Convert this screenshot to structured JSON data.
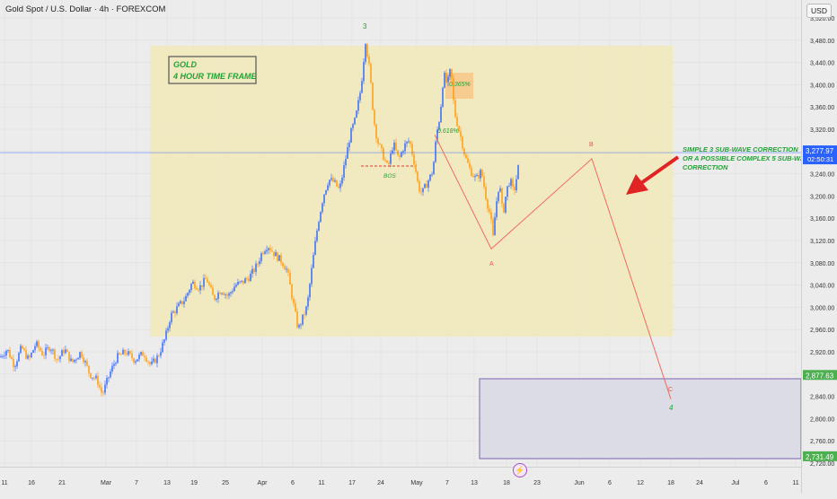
{
  "header": {
    "title": "Gold Spot / U.S. Dollar · 4h · FOREXCOM",
    "currency_button": "USD"
  },
  "chart_data": {
    "type": "candlestick",
    "title": "Gold Spot / U.S. Dollar · 4h · FOREXCOM",
    "ylim": [
      2705,
      3540
    ],
    "y_ticks": [
      2720,
      2760,
      2800,
      2840,
      2880,
      2920,
      2960,
      3000,
      3040,
      3080,
      3120,
      3160,
      3200,
      3240,
      3280,
      3320,
      3360,
      3400,
      3440,
      3480,
      3520
    ],
    "y_tick_labels": [
      "2,720.00",
      "2,760.00",
      "2,800.00",
      "2,840.00",
      "2,880.00",
      "2,920.00",
      "2,960.00",
      "3,000.00",
      "3,040.00",
      "3,080.00",
      "3,120.00",
      "3,160.00",
      "3,200.00",
      "3,240.00",
      "3,280.00",
      "3,320.00",
      "3,360.00",
      "3,400.00",
      "3,440.00",
      "3,480.00",
      "3,520.00"
    ],
    "x_ticks": [
      "11",
      "16",
      "21",
      "Mar",
      "7",
      "13",
      "19",
      "25",
      "Apr",
      "6",
      "11",
      "17",
      "24",
      "May",
      "7",
      "13",
      "18",
      "23",
      "Jun",
      "6",
      "12",
      "18",
      "24",
      "Jul",
      "6",
      "11"
    ],
    "price_path": [
      [
        0,
        2910
      ],
      [
        8,
        2925
      ],
      [
        16,
        2895
      ],
      [
        24,
        2928
      ],
      [
        32,
        2905
      ],
      [
        40,
        2935
      ],
      [
        48,
        2915
      ],
      [
        56,
        2930
      ],
      [
        64,
        2905
      ],
      [
        72,
        2925
      ],
      [
        80,
        2900
      ],
      [
        90,
        2920
      ],
      [
        100,
        2880
      ],
      [
        108,
        2870
      ],
      [
        114,
        2843
      ],
      [
        122,
        2880
      ],
      [
        130,
        2910
      ],
      [
        140,
        2920
      ],
      [
        150,
        2905
      ],
      [
        160,
        2918
      ],
      [
        168,
        2895
      ],
      [
        176,
        2912
      ],
      [
        184,
        2945
      ],
      [
        190,
        2985
      ],
      [
        198,
        3000
      ],
      [
        206,
        3015
      ],
      [
        214,
        3045
      ],
      [
        222,
        3035
      ],
      [
        230,
        3052
      ],
      [
        238,
        3015
      ],
      [
        246,
        3032
      ],
      [
        254,
        3020
      ],
      [
        262,
        3040
      ],
      [
        270,
        3045
      ],
      [
        278,
        3055
      ],
      [
        286,
        3075
      ],
      [
        292,
        3100
      ],
      [
        298,
        3112
      ],
      [
        306,
        3095
      ],
      [
        314,
        3082
      ],
      [
        320,
        3065
      ],
      [
        326,
        3012
      ],
      [
        332,
        2960
      ],
      [
        338,
        2985
      ],
      [
        342,
        3002
      ],
      [
        348,
        3080
      ],
      [
        354,
        3150
      ],
      [
        360,
        3200
      ],
      [
        366,
        3230
      ],
      [
        372,
        3225
      ],
      [
        378,
        3210
      ],
      [
        384,
        3260
      ],
      [
        390,
        3310
      ],
      [
        396,
        3340
      ],
      [
        402,
        3395
      ],
      [
        407,
        3480
      ],
      [
        412,
        3420
      ],
      [
        416,
        3340
      ],
      [
        420,
        3300
      ],
      [
        426,
        3275
      ],
      [
        432,
        3250
      ],
      [
        438,
        3295
      ],
      [
        444,
        3265
      ],
      [
        450,
        3290
      ],
      [
        456,
        3300
      ],
      [
        462,
        3255
      ],
      [
        466,
        3215
      ],
      [
        470,
        3205
      ],
      [
        476,
        3225
      ],
      [
        482,
        3245
      ],
      [
        486,
        3310
      ],
      [
        490,
        3345
      ],
      [
        494,
        3420
      ],
      [
        498,
        3400
      ],
      [
        502,
        3430
      ],
      [
        506,
        3350
      ],
      [
        510,
        3325
      ],
      [
        514,
        3300
      ],
      [
        518,
        3270
      ],
      [
        524,
        3245
      ],
      [
        530,
        3230
      ],
      [
        536,
        3245
      ],
      [
        542,
        3190
      ],
      [
        546,
        3165
      ],
      [
        549,
        3125
      ],
      [
        552,
        3180
      ],
      [
        556,
        3225
      ],
      [
        560,
        3165
      ],
      [
        564,
        3210
      ],
      [
        568,
        3230
      ],
      [
        572,
        3205
      ],
      [
        576,
        3240
      ],
      [
        578,
        3262
      ]
    ],
    "current_price": {
      "label": "3,277.97",
      "countdown": "02:50:31",
      "color": "#2962ff"
    },
    "scenario_line": {
      "points": [
        [
          484,
          3310
        ],
        [
          547,
          3105
        ],
        [
          659,
          3267
        ],
        [
          747,
          2835
        ]
      ],
      "labels": [
        "A",
        "B",
        "C"
      ],
      "color": "#f06b5e"
    },
    "price_labels": [
      {
        "label": "2,877.63",
        "value": 2877.63,
        "color": "#4caf50"
      },
      {
        "label": "2,731.49",
        "value": 2731.49,
        "color": "#4caf50"
      }
    ],
    "annotations": {
      "box_text": [
        "GOLD",
        "4 HOUR TIME FRAME"
      ],
      "correction_text": [
        "SIMPLE 3 SUB-WAVE CORRECTION",
        "OR A POSSIBLE COMPLEX 5 SUB-WAVE",
        "CORRECTION"
      ],
      "wave_3": "3",
      "wave_4": "4",
      "bos": "BOS",
      "fib_high": "0.365%",
      "fib_low": "0.618%"
    },
    "colors": {
      "bull": "#2962ff",
      "bear": "#ff9800",
      "zone": "#f2e9b8",
      "target_box": "#dcdce6",
      "text_green": "#26a037"
    }
  }
}
